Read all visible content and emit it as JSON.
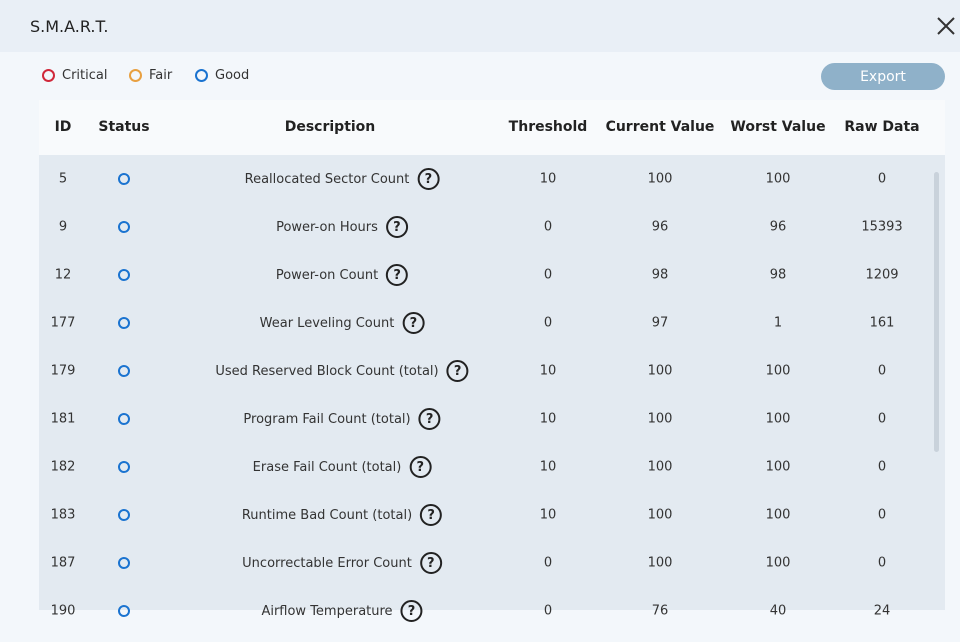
{
  "window": {
    "title": "S.M.A.R.T."
  },
  "legend": [
    "Critical",
    "Fair",
    "Good"
  ],
  "export_button": "Export",
  "table": {
    "headers": [
      "ID",
      "Status",
      "Description",
      "Threshold",
      "Current Value",
      "Worst Value",
      "Raw Data"
    ],
    "rows": [
      [
        5,
        "Reallocated Sector Count",
        10,
        100,
        100,
        0
      ],
      [
        9,
        "Power-on Hours",
        0,
        96,
        96,
        15393
      ],
      [
        12,
        "Power-on Count",
        0,
        98,
        98,
        1209
      ],
      [
        177,
        "Wear Leveling Count",
        0,
        97,
        1,
        161
      ],
      [
        179,
        "Used Reserved Block Count (total)",
        10,
        100,
        100,
        0
      ],
      [
        181,
        "Program Fail Count (total)",
        10,
        100,
        100,
        0
      ],
      [
        182,
        "Erase Fail Count (total)",
        10,
        100,
        100,
        0
      ],
      [
        183,
        "Runtime Bad Count (total)",
        10,
        100,
        100,
        0
      ],
      [
        187,
        "Uncorrectable Error Count",
        0,
        100,
        100,
        0
      ],
      [
        190,
        "Airflow Temperature",
        0,
        76,
        40,
        24
      ]
    ]
  }
}
